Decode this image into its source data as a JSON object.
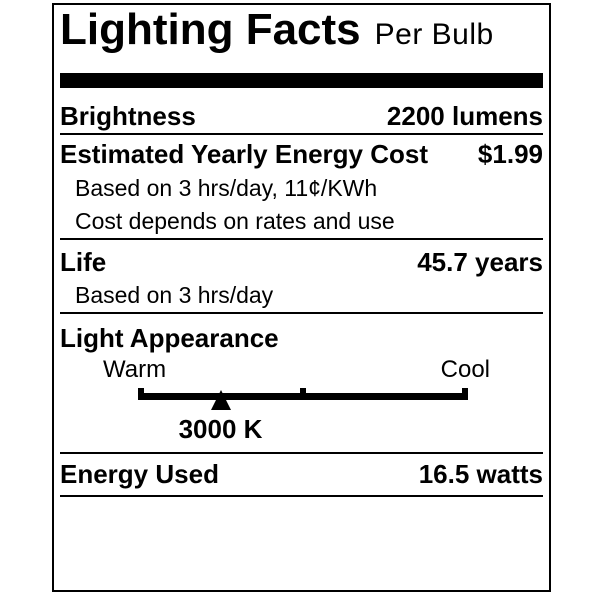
{
  "label": {
    "title": "Lighting Facts",
    "subtitle": "Per Bulb",
    "brightness": {
      "name": "Brightness",
      "value": "2200 lumens"
    },
    "energy_cost": {
      "name": "Estimated Yearly Energy Cost",
      "value": "$1.99",
      "note1": "Based on 3 hrs/day, 11¢/KWh",
      "note2": "Cost depends on rates and use"
    },
    "life": {
      "name": "Life",
      "value": "45.7 years",
      "note": "Based on 3 hrs/day"
    },
    "light_appearance": {
      "name": "Light Appearance",
      "warm_label": "Warm",
      "cool_label": "Cool",
      "color_temperature": "3000 K",
      "marker_percent": 25
    },
    "energy_used": {
      "name": "Energy Used",
      "value": "16.5 watts"
    },
    "colors": {
      "ink": "#000000",
      "paper": "#ffffff"
    }
  }
}
